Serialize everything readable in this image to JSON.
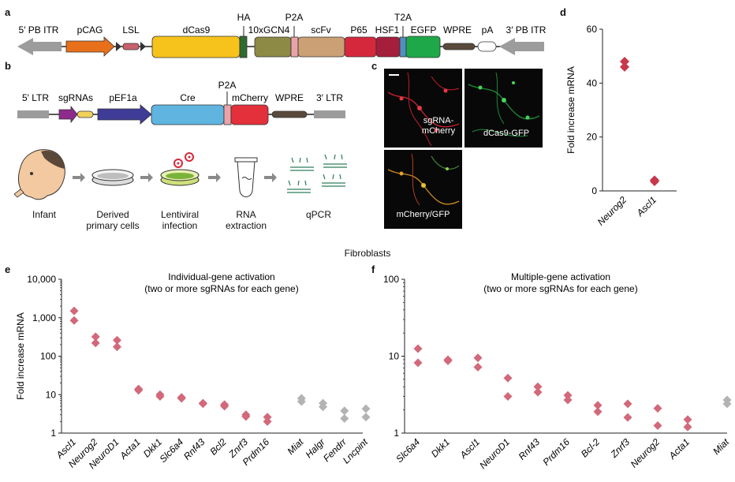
{
  "panels": {
    "a": "a",
    "b": "b",
    "c": "c",
    "d": "d",
    "e": "e",
    "f": "f"
  },
  "construct_a": {
    "labels": [
      "5′ PB ITR",
      "pCAG",
      "LSL",
      "dCas9",
      "HA",
      "10xGCN4",
      "P2A",
      "scFv",
      "P65",
      "HSF1",
      "T2A",
      "EGFP",
      "WPRE",
      "pA",
      "3′ PB ITR"
    ]
  },
  "construct_b": {
    "labels": [
      "5′ LTR",
      "sgRNAs",
      "pEF1a",
      "Cre",
      "P2A",
      "mCherry",
      "WPRE",
      "3′ LTR"
    ]
  },
  "workflow": {
    "steps": [
      "Infant",
      "Derived\nprimary cells",
      "Lentiviral\ninfection",
      "RNA\nextraction",
      "qPCR"
    ]
  },
  "microscopy": {
    "captions": [
      "sgRNA-\nmCherry",
      "dCas9-GFP",
      "mCherry/GFP"
    ]
  },
  "section_title": "Fibroblasts",
  "colors": {
    "pink": "#d2697a",
    "red": "#c8374c",
    "gray": "#b3b3b3",
    "pcag": "#e8701a",
    "dcas9": "#f6c21c",
    "gcn4": "#8c8a44",
    "scfv": "#cba075",
    "p65": "#d6283c",
    "egfp": "#1fa84a",
    "cre": "#5fb4e0",
    "mcherry": "#e3303a",
    "pef1a": "#3f3c97",
    "sgrna": "#8e2b8c"
  },
  "chart_data": [
    {
      "id": "d",
      "type": "scatter",
      "title": "",
      "ylabel": "Fold increase mRNA",
      "xlabel": "",
      "ylim": [
        0,
        60
      ],
      "yticks": [
        0,
        20,
        40,
        60
      ],
      "categories": [
        "Neurog2",
        "Ascl1"
      ],
      "series": [
        {
          "name": "rep1",
          "values": [
            48,
            4
          ]
        },
        {
          "name": "rep2",
          "values": [
            46,
            3.5
          ]
        }
      ]
    },
    {
      "id": "e",
      "type": "scatter",
      "title": "Individual-gene activation\n(two or more sgRNAs for each gene)",
      "ylabel": "Fold increase mRNA",
      "xlabel": "",
      "yscale": "log",
      "ylim": [
        1,
        10000
      ],
      "yticks": [
        1,
        10,
        100,
        1000,
        10000
      ],
      "ytick_labels": [
        "1",
        "10",
        "100",
        "1,000",
        "10,000"
      ],
      "categories": [
        "Ascl1",
        "Neurog2",
        "NeuroD1",
        "Acta1",
        "Dkk1",
        "Slc6a4",
        "Rnf43",
        "Bcl2",
        "Znrf3",
        "Prdm16",
        "Miat",
        "Halgr",
        "Fendrr",
        "Lncpint"
      ],
      "group": [
        "pink",
        "pink",
        "pink",
        "pink",
        "pink",
        "pink",
        "pink",
        "pink",
        "pink",
        "pink",
        "gray",
        "gray",
        "gray",
        "gray"
      ],
      "series": [
        {
          "name": "rep1",
          "values": [
            1500,
            320,
            260,
            14,
            10,
            8.5,
            6,
            5.5,
            3,
            2.6,
            8,
            6,
            3.8,
            4.3
          ]
        },
        {
          "name": "rep2",
          "values": [
            850,
            220,
            175,
            13,
            9,
            8,
            5.8,
            5,
            2.7,
            2.0,
            6.6,
            4.8,
            2.4,
            2.6
          ]
        }
      ]
    },
    {
      "id": "f",
      "type": "scatter",
      "title": "Multiple-gene activation\n(two or more sgRNAs for each gene)",
      "ylabel": "",
      "xlabel": "",
      "yscale": "log",
      "ylim": [
        1,
        100
      ],
      "yticks": [
        1,
        10,
        100
      ],
      "ytick_labels": [
        "1",
        "10",
        "100"
      ],
      "categories": [
        "Slc6a4",
        "Dkk1",
        "Ascl1",
        "NeuroD1",
        "Rnf43",
        "Prdm16",
        "Bcl-2",
        "Znrf3",
        "Neurog2",
        "Acta1",
        "Miat"
      ],
      "group": [
        "pink",
        "pink",
        "pink",
        "pink",
        "pink",
        "pink",
        "pink",
        "pink",
        "pink",
        "pink",
        "gray"
      ],
      "series": [
        {
          "name": "rep1",
          "values": [
            12.5,
            9,
            9.5,
            5.2,
            4,
            3.1,
            2.3,
            2.4,
            2.1,
            1.5,
            2.7
          ]
        },
        {
          "name": "rep2",
          "values": [
            8.2,
            8.7,
            7.2,
            3.0,
            3.4,
            2.7,
            1.9,
            1.6,
            1.25,
            1.2,
            2.4
          ]
        }
      ]
    }
  ]
}
